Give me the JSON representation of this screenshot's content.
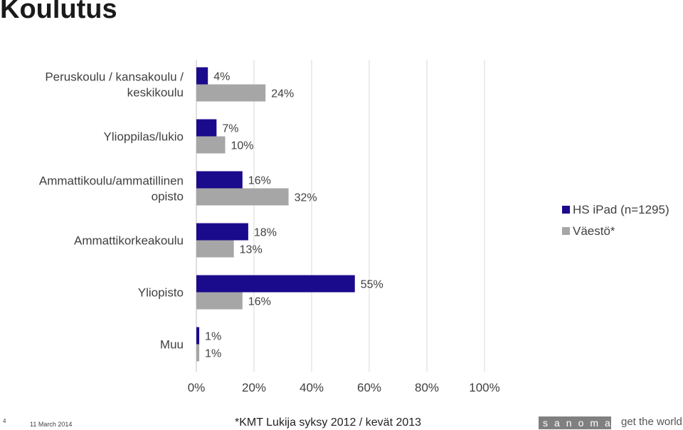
{
  "page": {
    "title": "Koulutus",
    "page_number": "4",
    "date": "11 March 2014",
    "source_note": "*KMT Lukija syksy 2012 / kevät 2013",
    "brand": "sanoma",
    "tagline": "get the world"
  },
  "chart_data": {
    "type": "bar",
    "orientation": "horizontal",
    "categories": [
      "Peruskoulu / kansakoulu / keskikoulu",
      "Ylioppilas/lukio",
      "Ammattikoulu/ammatillinen opisto",
      "Ammattikorkeakoulu",
      "Yliopisto",
      "Muu"
    ],
    "series": [
      {
        "name": "HS iPad (n=1295)",
        "color": "#1a0a8c",
        "values": [
          4,
          7,
          16,
          18,
          55,
          1
        ]
      },
      {
        "name": "Väestö*",
        "color": "#a6a6a6",
        "values": [
          24,
          10,
          32,
          13,
          16,
          1
        ]
      }
    ],
    "value_labels": [
      [
        "4%",
        "7%",
        "16%",
        "18%",
        "55%",
        "1%"
      ],
      [
        "24%",
        "10%",
        "32%",
        "13%",
        "16%",
        "1%"
      ]
    ],
    "xlim": [
      0,
      100
    ],
    "xticks": [
      0,
      20,
      40,
      60,
      80,
      100
    ],
    "xtick_labels": [
      "0%",
      "20%",
      "40%",
      "60%",
      "80%",
      "100%"
    ],
    "grid": "vertical",
    "legend": "right"
  }
}
